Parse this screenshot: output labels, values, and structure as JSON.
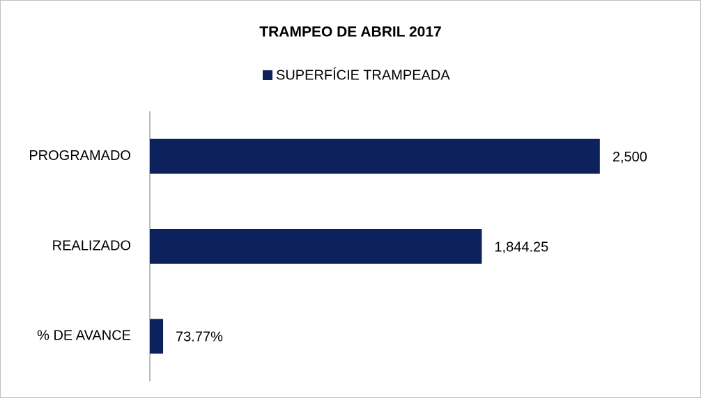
{
  "chart_data": {
    "type": "hbar",
    "title": "TRAMPEO DE ABRIL 2017",
    "categories": [
      "PROGRAMADO",
      "REALIZADO",
      "% DE AVANCE"
    ],
    "series": [
      {
        "name": "SUPERFÍCIE TRAMPEADA",
        "color": "#0d215c",
        "values": [
          2500,
          1844.25,
          73.77
        ],
        "value_labels": [
          "2,500",
          "1,844.25",
          "73.77%"
        ]
      }
    ],
    "xlim": [
      0,
      3000
    ],
    "legend": "top"
  }
}
